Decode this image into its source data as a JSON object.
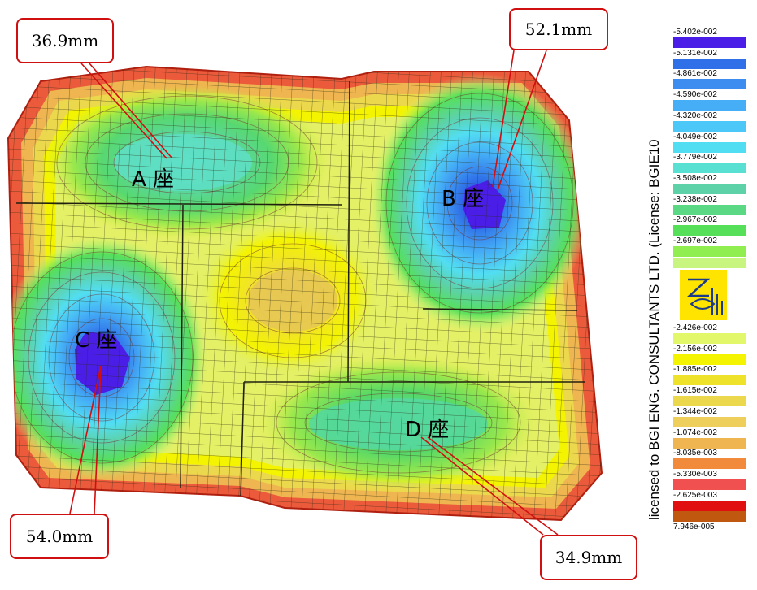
{
  "callouts": {
    "a": "36.9mm",
    "b": "52.1mm",
    "c": "54.0mm",
    "d": "34.9mm"
  },
  "zones": {
    "a": "A 座",
    "b": "B 座",
    "c": "C 座",
    "d": "D 座"
  },
  "license_text": "licensed to BGI ENG. CONSULTANTS LTD. (License: BGIE10",
  "legend": {
    "upper": [
      {
        "label": "-5.402e-002",
        "color": "#4a1ee6"
      },
      {
        "label": "-5.131e-002",
        "color": "#2f6fe8"
      },
      {
        "label": "-4.861e-002",
        "color": "#3d8cf0"
      },
      {
        "label": "-4.590e-002",
        "color": "#45aef6"
      },
      {
        "label": "-4.320e-002",
        "color": "#4cc8f8"
      },
      {
        "label": "-4.049e-002",
        "color": "#52def2"
      },
      {
        "label": "-3.779e-002",
        "color": "#58e0d2"
      },
      {
        "label": "-3.508e-002",
        "color": "#5dd2a8"
      },
      {
        "label": "-3.238e-002",
        "color": "#5ad884"
      },
      {
        "label": "-2.967e-002",
        "color": "#56e05a"
      },
      {
        "label": "-2.697e-002",
        "color": "#90ee50"
      }
    ],
    "upper_last_color": "#c8f580",
    "lower": [
      {
        "label": "-2.426e-002",
        "color": "#e2f76a"
      },
      {
        "label": "-2.156e-002",
        "color": "#f4f400"
      },
      {
        "label": "-1.885e-002",
        "color": "#eee22a"
      },
      {
        "label": "-1.615e-002",
        "color": "#ecd84c"
      },
      {
        "label": "-1.344e-002",
        "color": "#eecf5c"
      },
      {
        "label": "-1.074e-002",
        "color": "#eeb550"
      },
      {
        "label": "-8.035e-003",
        "color": "#f28a3c"
      },
      {
        "label": "-5.330e-003",
        "color": "#f05050"
      },
      {
        "label": "-2.625e-003",
        "color": "#e01010"
      },
      {
        "label": "7.946e-005",
        "color": "#c05810"
      }
    ]
  }
}
